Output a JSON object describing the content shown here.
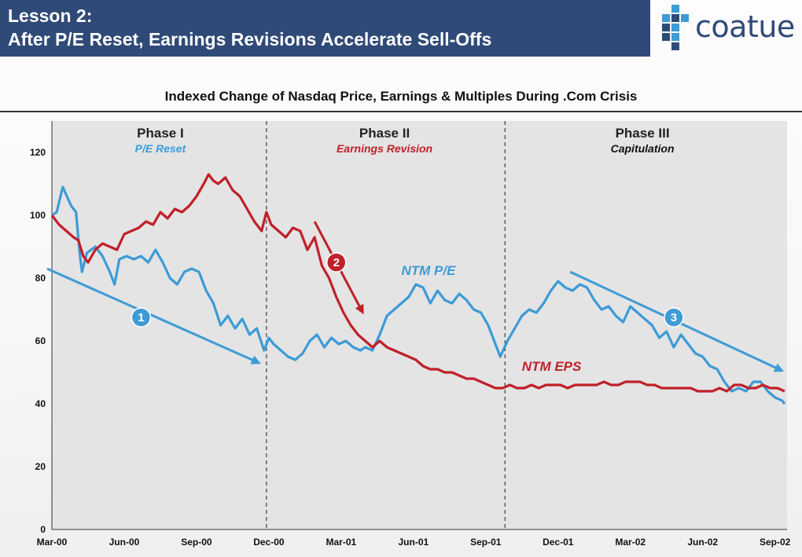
{
  "header": {
    "line1": "Lesson 2:",
    "line2": "After P/E Reset, Earnings Revisions Accelerate Sell-Offs"
  },
  "logo": {
    "text": "coatue",
    "color": "#2f4a77"
  },
  "chart_data": {
    "type": "line",
    "title": "Indexed Change of Nasdaq Price, Earnings & Multiples During .Com Crisis",
    "xlabel": "",
    "ylabel": "",
    "ylim": [
      0,
      130
    ],
    "yticks": [
      0,
      20,
      40,
      60,
      80,
      100,
      120
    ],
    "xlim": [
      0,
      30.5
    ],
    "xticks": [
      {
        "x": 0,
        "label": "Mar-00"
      },
      {
        "x": 3,
        "label": "Jun-00"
      },
      {
        "x": 6,
        "label": "Sep-00"
      },
      {
        "x": 9,
        "label": "Dec-00"
      },
      {
        "x": 12,
        "label": "Mar-01"
      },
      {
        "x": 15,
        "label": "Jun-01"
      },
      {
        "x": 18,
        "label": "Sep-01"
      },
      {
        "x": 21,
        "label": "Dec-01"
      },
      {
        "x": 24,
        "label": "Mar-02"
      },
      {
        "x": 27,
        "label": "Jun-02"
      },
      {
        "x": 30,
        "label": "Sep-02"
      }
    ],
    "grid": false,
    "background": "#e4e4e4",
    "phases": [
      {
        "name": "Phase I",
        "subtitle": "P/E Reset",
        "color": "#3d9bd6",
        "center": 4.5
      },
      {
        "name": "Phase II",
        "subtitle": "Earnings Revision",
        "color": "#c0202a",
        "center": 13.8
      },
      {
        "name": "Phase III",
        "subtitle": "Capitulation",
        "color": "#111111",
        "center": 24.5
      }
    ],
    "phase_dividers": [
      8.9,
      18.8
    ],
    "series": [
      {
        "name": "NTM P/E",
        "color": "#3d9bd6",
        "label_at": {
          "x": 14.5,
          "y": 81
        },
        "points": [
          [
            0,
            100
          ],
          [
            0.2,
            101
          ],
          [
            0.45,
            109
          ],
          [
            0.8,
            103
          ],
          [
            1.0,
            101
          ],
          [
            1.15,
            88
          ],
          [
            1.25,
            82
          ],
          [
            1.45,
            88
          ],
          [
            1.8,
            90
          ],
          [
            2.1,
            87
          ],
          [
            2.4,
            82
          ],
          [
            2.6,
            78
          ],
          [
            2.8,
            86
          ],
          [
            3.1,
            87
          ],
          [
            3.4,
            86
          ],
          [
            3.7,
            87
          ],
          [
            4.0,
            85
          ],
          [
            4.3,
            89
          ],
          [
            4.6,
            85
          ],
          [
            4.9,
            80
          ],
          [
            5.2,
            78
          ],
          [
            5.5,
            82
          ],
          [
            5.8,
            83
          ],
          [
            6.1,
            82
          ],
          [
            6.4,
            76
          ],
          [
            6.7,
            72
          ],
          [
            7.0,
            65
          ],
          [
            7.3,
            68
          ],
          [
            7.6,
            64
          ],
          [
            7.9,
            67
          ],
          [
            8.2,
            62
          ],
          [
            8.5,
            64
          ],
          [
            8.8,
            57
          ],
          [
            9.0,
            61
          ],
          [
            9.2,
            59
          ],
          [
            9.5,
            57
          ],
          [
            9.8,
            55
          ],
          [
            10.1,
            54
          ],
          [
            10.4,
            56
          ],
          [
            10.7,
            60
          ],
          [
            11.0,
            62
          ],
          [
            11.3,
            58
          ],
          [
            11.6,
            61
          ],
          [
            11.9,
            59
          ],
          [
            12.2,
            60
          ],
          [
            12.5,
            58
          ],
          [
            12.8,
            57
          ],
          [
            13.0,
            58
          ],
          [
            13.3,
            57
          ],
          [
            13.6,
            62
          ],
          [
            13.9,
            68
          ],
          [
            14.2,
            70
          ],
          [
            14.5,
            72
          ],
          [
            14.8,
            74
          ],
          [
            15.1,
            78
          ],
          [
            15.4,
            77
          ],
          [
            15.7,
            72
          ],
          [
            16.0,
            76
          ],
          [
            16.3,
            73
          ],
          [
            16.6,
            72
          ],
          [
            16.9,
            75
          ],
          [
            17.2,
            73
          ],
          [
            17.5,
            70
          ],
          [
            17.8,
            69
          ],
          [
            18.1,
            65
          ],
          [
            18.4,
            59
          ],
          [
            18.6,
            55
          ],
          [
            18.9,
            60
          ],
          [
            19.2,
            64
          ],
          [
            19.5,
            68
          ],
          [
            19.8,
            70
          ],
          [
            20.1,
            69
          ],
          [
            20.4,
            72
          ],
          [
            20.7,
            76
          ],
          [
            21.0,
            79
          ],
          [
            21.3,
            77
          ],
          [
            21.6,
            76
          ],
          [
            21.9,
            78
          ],
          [
            22.2,
            77
          ],
          [
            22.5,
            73
          ],
          [
            22.8,
            70
          ],
          [
            23.1,
            71
          ],
          [
            23.4,
            68
          ],
          [
            23.7,
            66
          ],
          [
            24.0,
            71
          ],
          [
            24.3,
            69
          ],
          [
            24.6,
            67
          ],
          [
            24.9,
            65
          ],
          [
            25.2,
            61
          ],
          [
            25.5,
            63
          ],
          [
            25.8,
            58
          ],
          [
            26.1,
            62
          ],
          [
            26.4,
            59
          ],
          [
            26.7,
            56
          ],
          [
            27.0,
            55
          ],
          [
            27.3,
            52
          ],
          [
            27.6,
            51
          ],
          [
            27.9,
            47
          ],
          [
            28.2,
            44
          ],
          [
            28.5,
            45
          ],
          [
            28.8,
            44
          ],
          [
            29.1,
            47
          ],
          [
            29.4,
            47
          ],
          [
            29.7,
            44
          ],
          [
            30.0,
            42
          ],
          [
            30.3,
            41
          ],
          [
            30.4,
            40
          ]
        ]
      },
      {
        "name": "NTM EPS",
        "color": "#c0202a",
        "label_at": {
          "x": 19.5,
          "y": 50.5
        },
        "points": [
          [
            0,
            100
          ],
          [
            0.3,
            97
          ],
          [
            0.6,
            95
          ],
          [
            0.9,
            93
          ],
          [
            1.1,
            92
          ],
          [
            1.3,
            87
          ],
          [
            1.5,
            85
          ],
          [
            1.8,
            89
          ],
          [
            2.1,
            91
          ],
          [
            2.4,
            90
          ],
          [
            2.7,
            89
          ],
          [
            3.0,
            94
          ],
          [
            3.3,
            95
          ],
          [
            3.6,
            96
          ],
          [
            3.9,
            98
          ],
          [
            4.2,
            97
          ],
          [
            4.5,
            101
          ],
          [
            4.8,
            99
          ],
          [
            5.1,
            102
          ],
          [
            5.4,
            101
          ],
          [
            5.7,
            103
          ],
          [
            6.0,
            106
          ],
          [
            6.3,
            110
          ],
          [
            6.5,
            113
          ],
          [
            6.7,
            111
          ],
          [
            6.9,
            110
          ],
          [
            7.2,
            112
          ],
          [
            7.5,
            108
          ],
          [
            7.8,
            106
          ],
          [
            8.1,
            102
          ],
          [
            8.4,
            98
          ],
          [
            8.7,
            95
          ],
          [
            8.9,
            101
          ],
          [
            9.1,
            97
          ],
          [
            9.4,
            95
          ],
          [
            9.7,
            93
          ],
          [
            10.0,
            96
          ],
          [
            10.3,
            95
          ],
          [
            10.6,
            89
          ],
          [
            10.9,
            93
          ],
          [
            11.2,
            84
          ],
          [
            11.5,
            80
          ],
          [
            11.8,
            74
          ],
          [
            12.1,
            69
          ],
          [
            12.4,
            65
          ],
          [
            12.7,
            62
          ],
          [
            13.0,
            60
          ],
          [
            13.3,
            58
          ],
          [
            13.6,
            60
          ],
          [
            13.9,
            58
          ],
          [
            14.2,
            57
          ],
          [
            14.5,
            56
          ],
          [
            14.8,
            55
          ],
          [
            15.1,
            54
          ],
          [
            15.4,
            52
          ],
          [
            15.7,
            51
          ],
          [
            16.0,
            51
          ],
          [
            16.3,
            50
          ],
          [
            16.6,
            50
          ],
          [
            16.9,
            49
          ],
          [
            17.2,
            48
          ],
          [
            17.5,
            48
          ],
          [
            17.8,
            47
          ],
          [
            18.1,
            46
          ],
          [
            18.4,
            45
          ],
          [
            18.7,
            45
          ],
          [
            19.0,
            46
          ],
          [
            19.3,
            45
          ],
          [
            19.6,
            45
          ],
          [
            19.9,
            46
          ],
          [
            20.2,
            45
          ],
          [
            20.5,
            46
          ],
          [
            20.8,
            46
          ],
          [
            21.1,
            46
          ],
          [
            21.4,
            45
          ],
          [
            21.7,
            46
          ],
          [
            22.0,
            46
          ],
          [
            22.3,
            46
          ],
          [
            22.6,
            46
          ],
          [
            22.9,
            47
          ],
          [
            23.2,
            46
          ],
          [
            23.5,
            46
          ],
          [
            23.8,
            47
          ],
          [
            24.1,
            47
          ],
          [
            24.4,
            47
          ],
          [
            24.7,
            46
          ],
          [
            25.0,
            46
          ],
          [
            25.3,
            45
          ],
          [
            25.6,
            45
          ],
          [
            25.9,
            45
          ],
          [
            26.2,
            45
          ],
          [
            26.5,
            45
          ],
          [
            26.8,
            44
          ],
          [
            27.1,
            44
          ],
          [
            27.4,
            44
          ],
          [
            27.7,
            45
          ],
          [
            28.0,
            44
          ],
          [
            28.3,
            46
          ],
          [
            28.6,
            46
          ],
          [
            28.9,
            45
          ],
          [
            29.2,
            45
          ],
          [
            29.5,
            46
          ],
          [
            29.8,
            45
          ],
          [
            30.1,
            45
          ],
          [
            30.4,
            44
          ]
        ]
      }
    ],
    "annotations": [
      {
        "type": "arrow",
        "number": "1",
        "color": "#3d9bd6",
        "from": [
          -0.2,
          83
        ],
        "to": [
          8.6,
          53
        ],
        "badge_at": [
          3.7,
          67.5
        ]
      },
      {
        "type": "arrow",
        "number": "2",
        "color": "#c0202a",
        "from": [
          10.9,
          98
        ],
        "to": [
          12.9,
          69
        ],
        "badge_at": [
          11.8,
          85
        ]
      },
      {
        "type": "arrow",
        "number": "3",
        "color": "#3d9bd6",
        "from": [
          21.5,
          82
        ],
        "to": [
          30.3,
          50.5
        ],
        "badge_at": [
          25.8,
          67.5
        ]
      }
    ]
  }
}
